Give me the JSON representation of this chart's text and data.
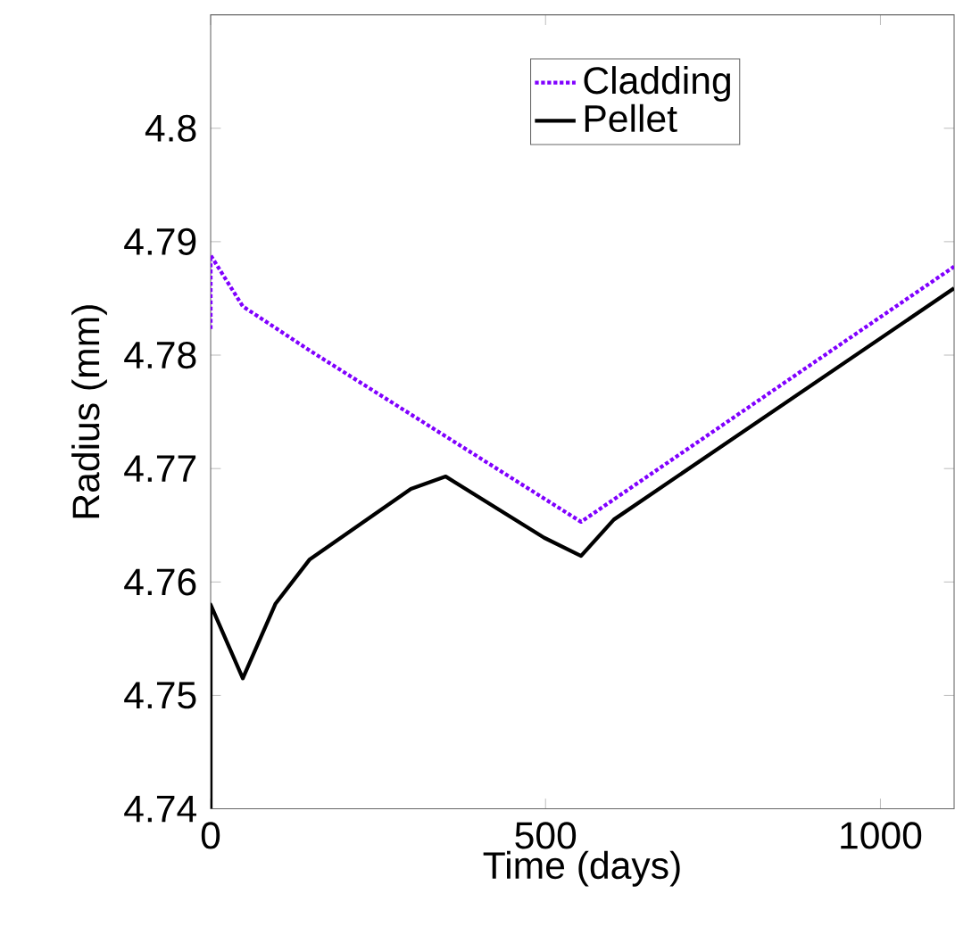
{
  "chart_data": {
    "type": "line",
    "xlabel": "Time (days)",
    "ylabel": "Radius (mm)",
    "xlim": [
      0,
      1110
    ],
    "ylim": [
      4.74,
      4.81
    ],
    "xticks": [
      0,
      500,
      1000
    ],
    "yticks": [
      4.74,
      4.75,
      4.76,
      4.77,
      4.78,
      4.79,
      4.8
    ],
    "legend": "top",
    "grid": false,
    "series": [
      {
        "name": "Cladding",
        "color": "#8000ff",
        "line_style": "dotted",
        "x": [
          0,
          0,
          48,
          148,
          553,
          1110
        ],
        "values": [
          4.7823,
          4.7888,
          4.7843,
          4.7804,
          4.7653,
          4.7878
        ]
      },
      {
        "name": "Pellet",
        "color": "#000000",
        "line_style": "solid",
        "x": [
          0,
          0,
          48,
          97,
          148,
          299,
          351,
          498,
          553,
          602,
          1110
        ],
        "values": [
          4.74,
          4.758,
          4.7515,
          4.7581,
          4.762,
          4.7682,
          4.7693,
          4.7639,
          4.7623,
          4.7655,
          4.7859
        ]
      }
    ]
  }
}
